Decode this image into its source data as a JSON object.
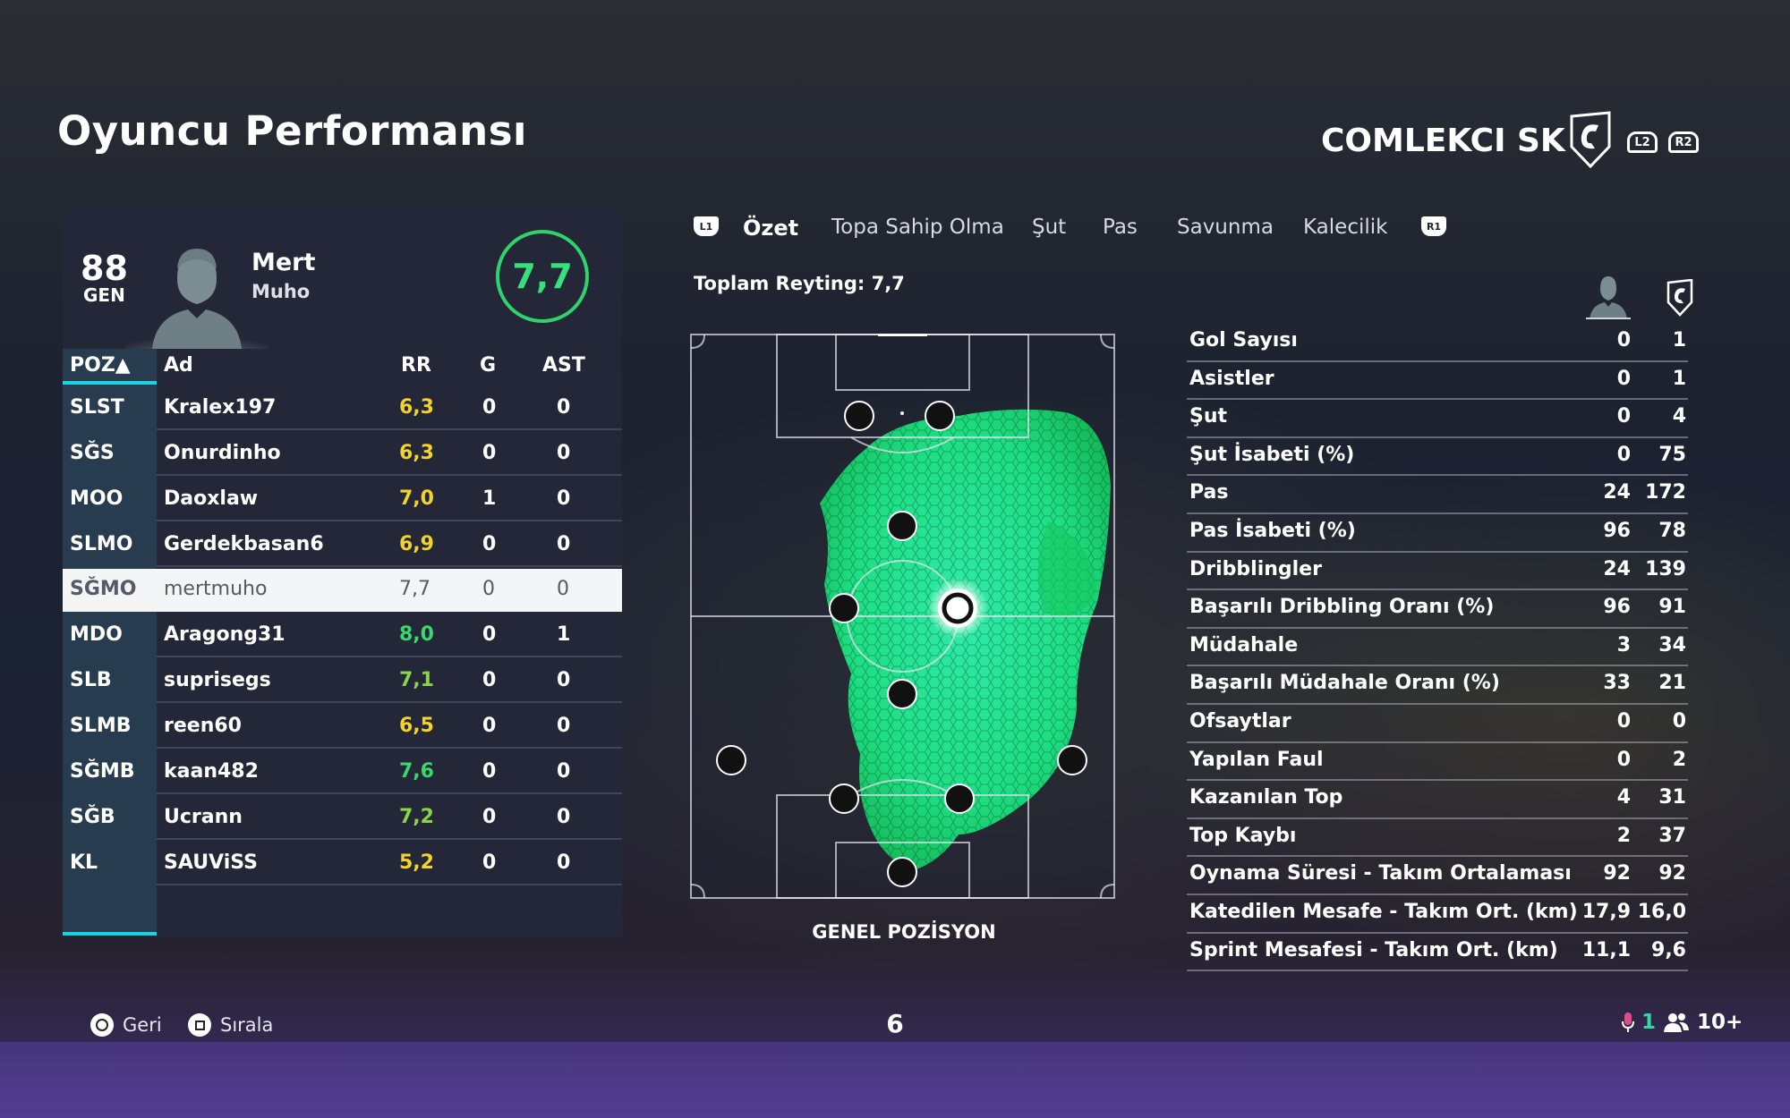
{
  "page": {
    "title": "Oyuncu Performansı"
  },
  "team": {
    "name": "COMLEKCI SK",
    "l2": "L2",
    "r2": "R2"
  },
  "player": {
    "overall": "88",
    "overall_label": "GEN",
    "first_name": "Mert",
    "last_name": "Muho",
    "rating": "7,7"
  },
  "table": {
    "headers": {
      "pos": "POZ▲",
      "name": "Ad",
      "rr": "RR",
      "g": "G",
      "ast": "AST"
    },
    "rows": [
      {
        "pos": "SLST",
        "name": "Kralex197",
        "rr": "6,3",
        "g": "0",
        "ast": "0",
        "rr_color": "#f2d22b"
      },
      {
        "pos": "SĞS",
        "name": "Onurdinho",
        "rr": "6,3",
        "g": "0",
        "ast": "0",
        "rr_color": "#f2d22b"
      },
      {
        "pos": "MOO",
        "name": "Daoxlaw",
        "rr": "7,0",
        "g": "1",
        "ast": "0",
        "rr_color": "#f2d22b"
      },
      {
        "pos": "SLMO",
        "name": "Gerdekbasan6",
        "rr": "6,9",
        "g": "0",
        "ast": "0",
        "rr_color": "#f2d22b"
      },
      {
        "pos": "SĞMO",
        "name": "mertmuho",
        "rr": "7,7",
        "g": "0",
        "ast": "0",
        "rr_color": "#555a66"
      },
      {
        "pos": "MDO",
        "name": "Aragong31",
        "rr": "8,0",
        "g": "0",
        "ast": "1",
        "rr_color": "#39d86c"
      },
      {
        "pos": "SLB",
        "name": "suprisegs",
        "rr": "7,1",
        "g": "0",
        "ast": "0",
        "rr_color": "#8bd44a"
      },
      {
        "pos": "SLMB",
        "name": "reen60",
        "rr": "6,5",
        "g": "0",
        "ast": "0",
        "rr_color": "#f2d22b"
      },
      {
        "pos": "SĞMB",
        "name": "kaan482",
        "rr": "7,6",
        "g": "0",
        "ast": "0",
        "rr_color": "#39d86c"
      },
      {
        "pos": "SĞB",
        "name": "Ucrann",
        "rr": "7,2",
        "g": "0",
        "ast": "0",
        "rr_color": "#8bd44a"
      },
      {
        "pos": "KL",
        "name": "SAUViSS",
        "rr": "5,2",
        "g": "0",
        "ast": "0",
        "rr_color": "#f2d22b"
      }
    ]
  },
  "tabs": {
    "l1": "L1",
    "r1": "R1",
    "items": [
      "Özet",
      "Topa Sahip Olma",
      "Şut",
      "Pas",
      "Savunma",
      "Kalecilik"
    ]
  },
  "summary": {
    "total_rating": "Toplam Reyting: 7,7",
    "pitch_caption": "GENEL POZİSYON"
  },
  "stats": [
    {
      "label": "Gol Sayısı",
      "player": "0",
      "team": "1"
    },
    {
      "label": "Asistler",
      "player": "0",
      "team": "1"
    },
    {
      "label": "Şut",
      "player": "0",
      "team": "4"
    },
    {
      "label": "Şut İsabeti (%)",
      "player": "0",
      "team": "75"
    },
    {
      "label": "Pas",
      "player": "24",
      "team": "172"
    },
    {
      "label": "Pas İsabeti (%)",
      "player": "96",
      "team": "78"
    },
    {
      "label": "Dribblingler",
      "player": "24",
      "team": "139"
    },
    {
      "label": "Başarılı Dribbling Oranı (%)",
      "player": "96",
      "team": "91"
    },
    {
      "label": "Müdahale",
      "player": "3",
      "team": "34"
    },
    {
      "label": "Başarılı Müdahale Oranı (%)",
      "player": "33",
      "team": "21"
    },
    {
      "label": "Ofsaytlar",
      "player": "0",
      "team": "0"
    },
    {
      "label": "Yapılan Faul",
      "player": "0",
      "team": "2"
    },
    {
      "label": "Kazanılan Top",
      "player": "4",
      "team": "31"
    },
    {
      "label": "Top Kaybı",
      "player": "2",
      "team": "37"
    },
    {
      "label": "Oynama Süresi - Takım Ortalaması",
      "player": "92",
      "team": "92"
    },
    {
      "label": "Katedilen Mesafe - Takım Ort. (km)",
      "player": "17,9",
      "team": "16,0"
    },
    {
      "label": "Sprint Mesafesi - Takım Ort. (km)",
      "player": "11,1",
      "team": "9,6"
    }
  ],
  "footer": {
    "back": "Geri",
    "sort": "Sırala",
    "page": "6",
    "mic_count": "1",
    "players_count": "10+"
  },
  "colors": {
    "accent": "#19d3e0",
    "rating_green": "#2fd36a",
    "heat": "#27f2a0"
  }
}
